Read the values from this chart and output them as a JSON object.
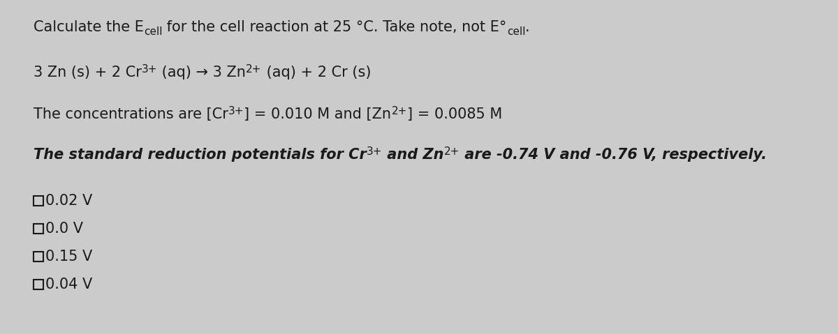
{
  "bg_color": "#cbcbcb",
  "text_color": "#1a1a1a",
  "fig_width": 12.0,
  "fig_height": 4.79,
  "font_size_main": 15,
  "font_size_super": 11,
  "font_size_sub": 11,
  "font_size_options": 15,
  "options": [
    "0.02 V",
    "0.0 V",
    "0.15 V",
    "0.04 V"
  ]
}
